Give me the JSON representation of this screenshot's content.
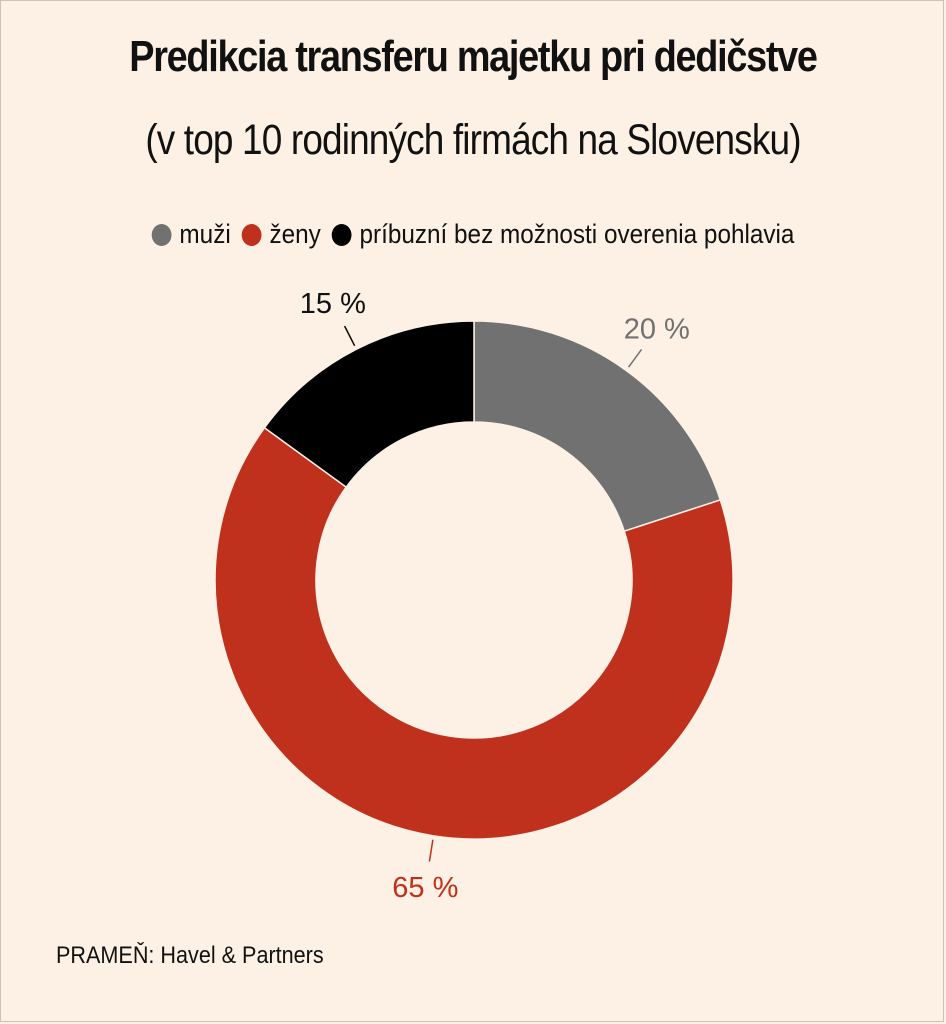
{
  "chart_data": {
    "type": "pie",
    "title": "Predikcia transferu majetku pri dedičstve",
    "subtitle": "(v top 10 rodinných firmách na Slovensku)",
    "categories": [
      "muži",
      "ženy",
      "príbuzní bez možnosti overenia pohlavia"
    ],
    "values": [
      20,
      65,
      15
    ],
    "value_labels": [
      "20 %",
      "65 %",
      "15 %"
    ],
    "colors": [
      "#717171",
      "#c0311d",
      "#000000"
    ],
    "style": "donut",
    "legend_position": "top"
  },
  "source": "PRAMEŇ: Havel & Partners"
}
